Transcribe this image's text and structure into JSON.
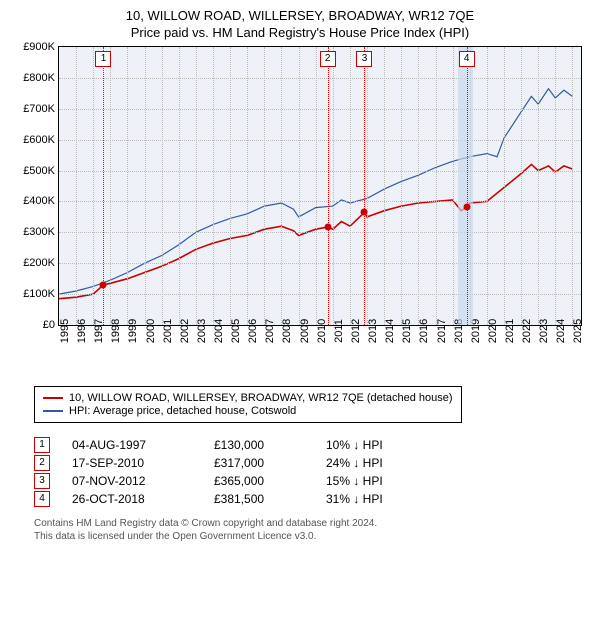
{
  "title_main": "10, WILLOW ROAD, WILLERSEY, BROADWAY, WR12 7QE",
  "title_sub": "Price paid vs. HM Land Registry's House Price Index (HPI)",
  "chart": {
    "type": "line",
    "background_color": "#eef2f8",
    "grid_color": "#bbbbbb",
    "x": {
      "min": 1995,
      "max": 2025.5,
      "ticks": [
        1995,
        1996,
        1997,
        1998,
        1999,
        2000,
        2001,
        2002,
        2003,
        2004,
        2005,
        2006,
        2007,
        2008,
        2009,
        2010,
        2011,
        2012,
        2013,
        2014,
        2015,
        2016,
        2017,
        2018,
        2019,
        2020,
        2021,
        2022,
        2023,
        2024,
        2025
      ]
    },
    "y": {
      "min": 0,
      "max": 900000,
      "ticks": [
        0,
        100000,
        200000,
        300000,
        400000,
        500000,
        600000,
        700000,
        800000,
        900000
      ],
      "tick_labels": [
        "£0",
        "£100K",
        "£200K",
        "£300K",
        "£400K",
        "£500K",
        "£600K",
        "£700K",
        "£800K",
        "£900K"
      ]
    },
    "series": {
      "property": {
        "label": "10, WILLOW ROAD, WILLERSEY, BROADWAY, WR12 7QE (detached house)",
        "color": "#cc0000",
        "width": 1.6
      },
      "hpi": {
        "label": "HPI: Average price, detached house, Cotswold",
        "color": "#315aa6",
        "width": 1.2
      }
    },
    "property_points": [
      [
        1995.0,
        85000
      ],
      [
        1996.0,
        90000
      ],
      [
        1997.0,
        100000
      ],
      [
        1997.6,
        130000
      ],
      [
        1998.0,
        135000
      ],
      [
        1999.0,
        150000
      ],
      [
        2000.0,
        170000
      ],
      [
        2001.0,
        190000
      ],
      [
        2002.0,
        215000
      ],
      [
        2003.0,
        245000
      ],
      [
        2004.0,
        265000
      ],
      [
        2005.0,
        280000
      ],
      [
        2006.0,
        290000
      ],
      [
        2007.0,
        310000
      ],
      [
        2008.0,
        320000
      ],
      [
        2008.7,
        305000
      ],
      [
        2009.0,
        290000
      ],
      [
        2010.0,
        310000
      ],
      [
        2010.7,
        317000
      ],
      [
        2011.0,
        310000
      ],
      [
        2011.5,
        335000
      ],
      [
        2012.0,
        320000
      ],
      [
        2012.85,
        365000
      ],
      [
        2013.0,
        350000
      ],
      [
        2014.0,
        370000
      ],
      [
        2015.0,
        385000
      ],
      [
        2016.0,
        395000
      ],
      [
        2017.0,
        400000
      ],
      [
        2018.0,
        405000
      ],
      [
        2018.5,
        370000
      ],
      [
        2018.82,
        381500
      ],
      [
        2019.0,
        395000
      ],
      [
        2020.0,
        400000
      ],
      [
        2021.0,
        445000
      ],
      [
        2022.0,
        490000
      ],
      [
        2022.6,
        520000
      ],
      [
        2023.0,
        500000
      ],
      [
        2023.6,
        515000
      ],
      [
        2024.0,
        495000
      ],
      [
        2024.5,
        515000
      ],
      [
        2025.0,
        505000
      ]
    ],
    "hpi_points": [
      [
        1995.0,
        100000
      ],
      [
        1996.0,
        110000
      ],
      [
        1997.0,
        125000
      ],
      [
        1998.0,
        145000
      ],
      [
        1999.0,
        170000
      ],
      [
        2000.0,
        200000
      ],
      [
        2001.0,
        225000
      ],
      [
        2002.0,
        260000
      ],
      [
        2003.0,
        300000
      ],
      [
        2004.0,
        325000
      ],
      [
        2005.0,
        345000
      ],
      [
        2006.0,
        360000
      ],
      [
        2007.0,
        385000
      ],
      [
        2008.0,
        395000
      ],
      [
        2008.7,
        375000
      ],
      [
        2009.0,
        350000
      ],
      [
        2010.0,
        380000
      ],
      [
        2011.0,
        385000
      ],
      [
        2011.5,
        405000
      ],
      [
        2012.0,
        395000
      ],
      [
        2013.0,
        410000
      ],
      [
        2014.0,
        440000
      ],
      [
        2015.0,
        465000
      ],
      [
        2016.0,
        485000
      ],
      [
        2017.0,
        510000
      ],
      [
        2018.0,
        530000
      ],
      [
        2019.0,
        545000
      ],
      [
        2020.0,
        555000
      ],
      [
        2020.6,
        545000
      ],
      [
        2021.0,
        605000
      ],
      [
        2022.0,
        690000
      ],
      [
        2022.6,
        740000
      ],
      [
        2023.0,
        715000
      ],
      [
        2023.6,
        765000
      ],
      [
        2024.0,
        735000
      ],
      [
        2024.5,
        760000
      ],
      [
        2025.0,
        740000
      ]
    ],
    "marker_band": {
      "from": 2018.3,
      "to": 2019.2,
      "color": "rgba(200,215,235,0.65)"
    },
    "sale_markers": [
      {
        "n": "1",
        "x": 1997.6,
        "y": 130000
      },
      {
        "n": "2",
        "x": 2010.7,
        "y": 317000
      },
      {
        "n": "3",
        "x": 2012.85,
        "y": 365000
      },
      {
        "n": "4",
        "x": 2018.82,
        "y": 381500
      }
    ]
  },
  "legend": [
    {
      "color": "#cc0000",
      "label": "10, WILLOW ROAD, WILLERSEY, BROADWAY, WR12 7QE (detached house)"
    },
    {
      "color": "#315aa6",
      "label": "HPI: Average price, detached house, Cotswold"
    }
  ],
  "sales_table": {
    "rows": [
      {
        "n": "1",
        "date": "04-AUG-1997",
        "price": "£130,000",
        "diff": "10% ↓ HPI"
      },
      {
        "n": "2",
        "date": "17-SEP-2010",
        "price": "£317,000",
        "diff": "24% ↓ HPI"
      },
      {
        "n": "3",
        "date": "07-NOV-2012",
        "price": "£365,000",
        "diff": "15% ↓ HPI"
      },
      {
        "n": "4",
        "date": "26-OCT-2018",
        "price": "£381,500",
        "diff": "31% ↓ HPI"
      }
    ]
  },
  "footer_line1": "Contains HM Land Registry data © Crown copyright and database right 2024.",
  "footer_line2": "This data is licensed under the Open Government Licence v3.0."
}
